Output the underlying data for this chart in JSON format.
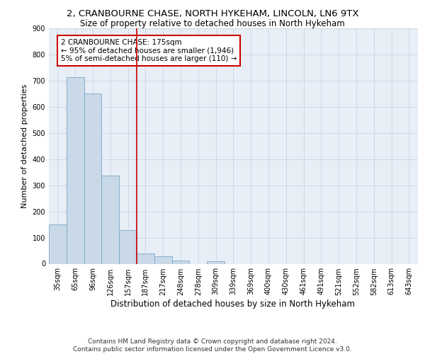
{
  "title_line1": "2, CRANBOURNE CHASE, NORTH HYKEHAM, LINCOLN, LN6 9TX",
  "title_line2": "Size of property relative to detached houses in North Hykeham",
  "xlabel": "Distribution of detached houses by size in North Hykeham",
  "ylabel": "Number of detached properties",
  "categories": [
    "35sqm",
    "65sqm",
    "96sqm",
    "126sqm",
    "157sqm",
    "187sqm",
    "217sqm",
    "248sqm",
    "278sqm",
    "309sqm",
    "339sqm",
    "369sqm",
    "400sqm",
    "430sqm",
    "461sqm",
    "491sqm",
    "521sqm",
    "552sqm",
    "582sqm",
    "613sqm",
    "643sqm"
  ],
  "values": [
    150,
    714,
    651,
    338,
    128,
    40,
    28,
    12,
    0,
    10,
    0,
    0,
    0,
    0,
    0,
    0,
    0,
    0,
    0,
    0,
    0
  ],
  "bar_color": "#c9d9e8",
  "bar_edge_color": "#7aa8c8",
  "vline_x": 4.5,
  "vline_color": "#cc0000",
  "annotation_text": "2 CRANBOURNE CHASE: 175sqm\n← 95% of detached houses are smaller (1,946)\n5% of semi-detached houses are larger (110) →",
  "annotation_box_color": "#cc0000",
  "ylim": [
    0,
    900
  ],
  "yticks": [
    0,
    100,
    200,
    300,
    400,
    500,
    600,
    700,
    800,
    900
  ],
  "grid_color": "#c8d4e4",
  "background_color": "#e8eef6",
  "footnote": "Contains HM Land Registry data © Crown copyright and database right 2024.\nContains public sector information licensed under the Open Government Licence v3.0.",
  "title_fontsize": 9.5,
  "subtitle_fontsize": 8.5,
  "xlabel_fontsize": 8.5,
  "ylabel_fontsize": 8,
  "tick_fontsize": 7,
  "annot_fontsize": 7.5,
  "footnote_fontsize": 6.5
}
